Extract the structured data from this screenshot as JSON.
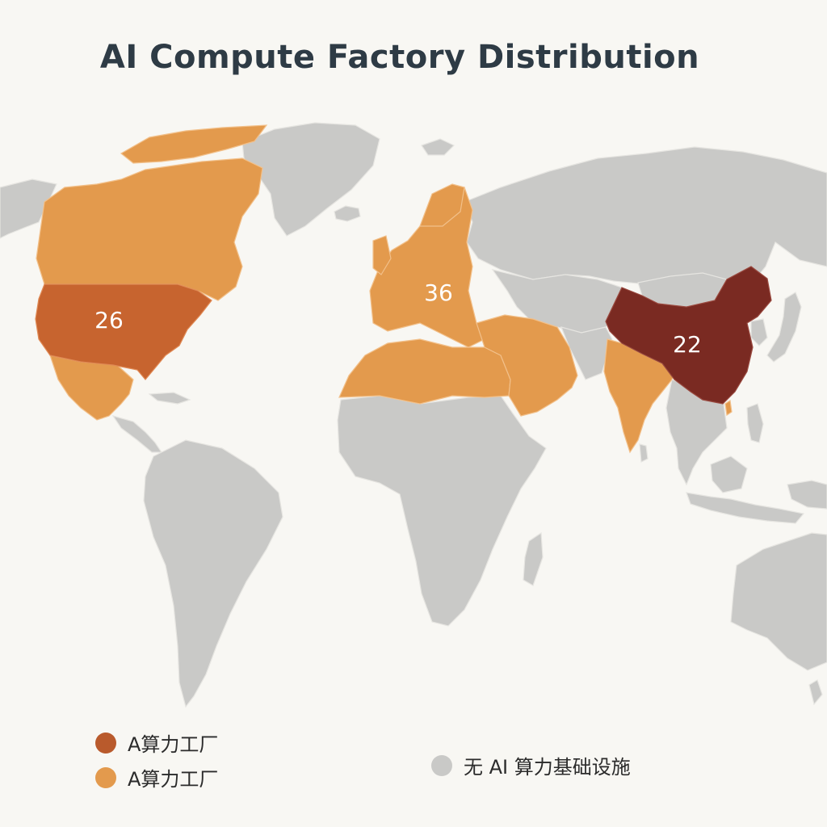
{
  "title": "AI Compute Factory Distribution",
  "colors": {
    "background": "#f8f7f3",
    "no_infrastructure": "#c9c9c7",
    "usa": "#c7642f",
    "secondary_tier": "#e39a4d",
    "china": "#7a2a22"
  },
  "regions": [
    {
      "name": "United States",
      "count": "26",
      "tier": "primary"
    },
    {
      "name": "Europe",
      "count": "36",
      "tier": "secondary"
    },
    {
      "name": "China",
      "count": "22",
      "tier": "top"
    }
  ],
  "legend": {
    "items": [
      {
        "label": "A算力工厂",
        "color": "#b95a2c"
      },
      {
        "label": "A算力工厂",
        "color": "#e39a4d"
      },
      {
        "label": "无 AI 算力基础设施",
        "color": "#c9c9c7"
      }
    ]
  }
}
